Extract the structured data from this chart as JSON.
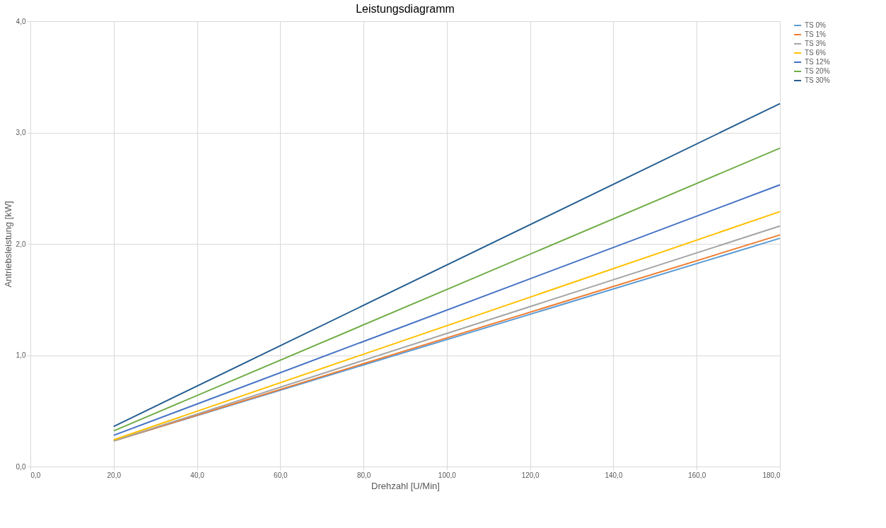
{
  "chart_data": {
    "type": "line",
    "title": "Leistungsdiagramm",
    "xlabel": "Drehzahl [U/Min]",
    "ylabel": "Antriebsleistung [kW]",
    "x": [
      20,
      180
    ],
    "series": [
      {
        "name": "TS 0%",
        "color": "#5b9bd5",
        "values": [
          0.23,
          2.05
        ]
      },
      {
        "name": "TS 1%",
        "color": "#ed7d31",
        "values": [
          0.23,
          2.08
        ]
      },
      {
        "name": "TS 3%",
        "color": "#a5a5a5",
        "values": [
          0.23,
          2.16
        ]
      },
      {
        "name": "TS 6%",
        "color": "#ffc000",
        "values": [
          0.24,
          2.29
        ]
      },
      {
        "name": "TS 12%",
        "color": "#4472c4",
        "values": [
          0.28,
          2.53
        ]
      },
      {
        "name": "TS 20%",
        "color": "#70ad47",
        "values": [
          0.32,
          2.86
        ]
      },
      {
        "name": "TS 30%",
        "color": "#255e91",
        "values": [
          0.36,
          3.26
        ]
      }
    ],
    "xlim": [
      0,
      180
    ],
    "xticks": [
      {
        "value": 0,
        "label": "0,0"
      },
      {
        "value": 20,
        "label": "20,0"
      },
      {
        "value": 40,
        "label": "40,0"
      },
      {
        "value": 60,
        "label": "60,0"
      },
      {
        "value": 80,
        "label": "80,0"
      },
      {
        "value": 100,
        "label": "100,0"
      },
      {
        "value": 120,
        "label": "120,0"
      },
      {
        "value": 140,
        "label": "140,0"
      },
      {
        "value": 160,
        "label": "160,0"
      },
      {
        "value": 180,
        "label": "180,0"
      }
    ],
    "ylim": [
      0,
      4
    ],
    "yticks": [
      {
        "value": 0,
        "label": "0,0"
      },
      {
        "value": 1,
        "label": "1,0"
      },
      {
        "value": 2,
        "label": "2,0"
      },
      {
        "value": 3,
        "label": "3,0"
      },
      {
        "value": 4,
        "label": "4,0"
      }
    ],
    "grid": true,
    "legend": "right",
    "marker": "none",
    "line_style": "solid"
  }
}
